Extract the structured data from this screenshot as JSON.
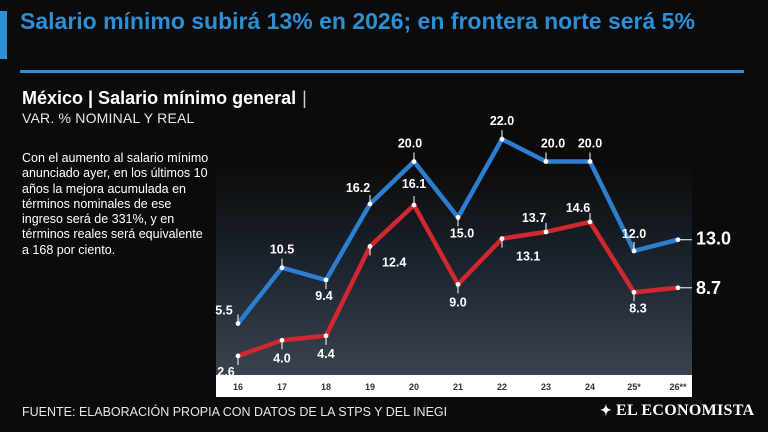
{
  "header": {
    "headline": "Salario mínimo subirá 13% en 2026; en frontera norte será 5%",
    "accent_color": "#2c8fd6"
  },
  "chart_meta": {
    "title": "México | Salario mínimo general",
    "separator": "|",
    "subtitle": "VAR. % NOMINAL Y REAL"
  },
  "note": "Con el aumento al salario mínimo anunciado ayer, en los últimos 10 años la mejora acumulada en términos nominales de ese ingreso será de 331%, y en términos reales será equivalente a 168 por ciento.",
  "footer": {
    "source": "FUENTE: ELABORACIÓN PROPIA CON DATOS DE LA STPS Y DEL INEGI",
    "brand": "EL ECONOMISTA",
    "brand_mark": "✦"
  },
  "chart_data": {
    "type": "line",
    "title": "México | Salario mínimo general",
    "subtitle": "VAR. % NOMINAL Y REAL",
    "categories": [
      "16",
      "17",
      "18",
      "19",
      "20",
      "21",
      "22",
      "23",
      "24",
      "25*",
      "26**"
    ],
    "ylim": [
      0,
      23
    ],
    "grid": false,
    "series": [
      {
        "name": "Nominal",
        "color": "#2c7fd0",
        "values": [
          5.5,
          10.5,
          9.4,
          16.2,
          20.0,
          15.0,
          22.0,
          20.0,
          20.0,
          12.0,
          13.0
        ],
        "labels": [
          "5.5",
          "10.5",
          "9.4",
          "16.2",
          "20.0",
          "15.0",
          "22.0",
          "20.0",
          "20.0",
          "12.0",
          "13.0"
        ]
      },
      {
        "name": "Real",
        "color": "#d0282e",
        "values": [
          2.6,
          4.0,
          4.4,
          12.4,
          16.1,
          9.0,
          13.1,
          13.7,
          14.6,
          8.3,
          8.7
        ],
        "labels": [
          "2.6",
          "4.0",
          "4.4",
          "12.4",
          "16.1",
          "9.0",
          "13.1",
          "13.7",
          "14.6",
          "8.3",
          "8.7"
        ]
      }
    ]
  }
}
